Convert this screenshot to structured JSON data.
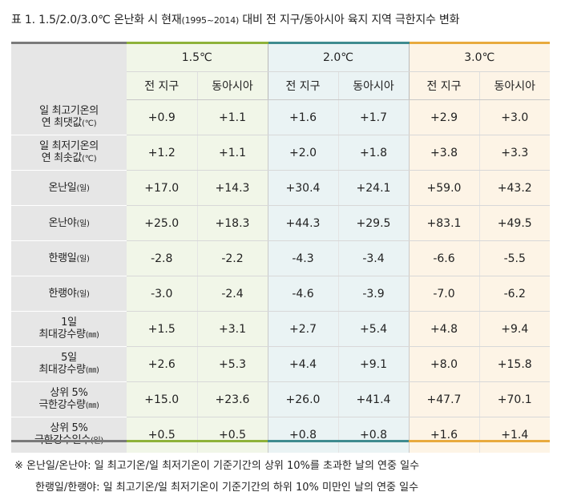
{
  "title": {
    "prefix": "표 1. 1.5/2.0/3.0℃ 온난화 시 현재",
    "period": "(1995~2014)",
    "suffix": " 대비 전 지구/동아시아 육지 지역 극한지수 변화"
  },
  "groups": [
    "1.5℃",
    "2.0℃",
    "3.0℃"
  ],
  "subheaders": [
    "전 지구",
    "동아시아",
    "전 지구",
    "동아시아",
    "전 지구",
    "동아시아"
  ],
  "rows": [
    {
      "l1": "일 최고기온의",
      "l2": "연 최댓값",
      "unit": "(℃)",
      "values": [
        "+0.9",
        "+1.1",
        "+1.6",
        "+1.7",
        "+2.9",
        "+3.0"
      ]
    },
    {
      "l1": "일 최저기온의",
      "l2": "연 최솟값",
      "unit": "(℃)",
      "values": [
        "+1.2",
        "+1.1",
        "+2.0",
        "+1.8",
        "+3.8",
        "+3.3"
      ]
    },
    {
      "l1": "온난일",
      "l2": "",
      "unit": "(일)",
      "values": [
        "+17.0",
        "+14.3",
        "+30.4",
        "+24.1",
        "+59.0",
        "+43.2"
      ]
    },
    {
      "l1": "온난야",
      "l2": "",
      "unit": "(일)",
      "values": [
        "+25.0",
        "+18.3",
        "+44.3",
        "+29.5",
        "+83.1",
        "+49.5"
      ]
    },
    {
      "l1": "한랭일",
      "l2": "",
      "unit": "(일)",
      "values": [
        "-2.8",
        "-2.2",
        "-4.3",
        "-3.4",
        "-6.6",
        "-5.5"
      ]
    },
    {
      "l1": "한랭야",
      "l2": "",
      "unit": "(일)",
      "values": [
        "-3.0",
        "-2.4",
        "-4.6",
        "-3.9",
        "-7.0",
        "-6.2"
      ]
    },
    {
      "l1": "1일",
      "l2": "최대강수량",
      "unit": "(㎜)",
      "values": [
        "+1.5",
        "+3.1",
        "+2.7",
        "+5.4",
        "+4.8",
        "+9.4"
      ]
    },
    {
      "l1": "5일",
      "l2": "최대강수량",
      "unit": "(㎜)",
      "values": [
        "+2.6",
        "+5.3",
        "+4.4",
        "+9.1",
        "+8.0",
        "+15.8"
      ]
    },
    {
      "l1": "상위 5%",
      "l2": "극한강수량",
      "unit": "(㎜)",
      "values": [
        "+15.0",
        "+23.6",
        "+26.0",
        "+41.4",
        "+47.7",
        "+70.1"
      ]
    },
    {
      "l1": "상위 5%",
      "l2": "극한강수일수",
      "unit": "(일)",
      "values": [
        "+0.5",
        "+0.5",
        "+0.8",
        "+0.8",
        "+1.6",
        "+1.4"
      ]
    }
  ],
  "notes": [
    "※ 온난일/온난야: 일 최고기온/일 최저기온이 기준기간의 상위 10%를 초과한 날의 연중 일수",
    "한랭일/한랭야: 일 최고기온/일 최저기온이 기준기간의 하위 10% 미만인 날의 연중 일수"
  ],
  "colors": {
    "green": "#8eb23a",
    "teal": "#3f8b8f",
    "orange": "#e8aa3e",
    "gray": "#7a7a7a"
  }
}
